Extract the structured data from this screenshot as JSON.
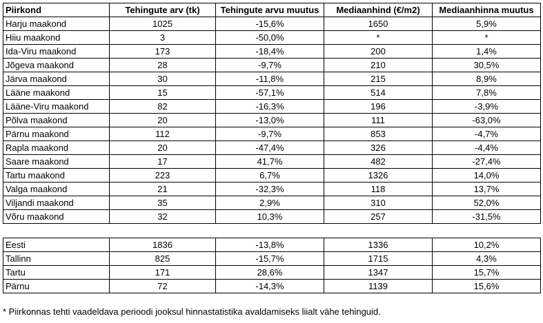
{
  "headers": [
    "Piirkond",
    "Tehingute arv (tk)",
    "Tehingute arvu muutus",
    "Mediaanhind (€/m2)",
    "Mediaanhinna muutus"
  ],
  "rows": [
    [
      "Harju maakond",
      "1025",
      "-15,6%",
      "1650",
      "5,9%"
    ],
    [
      "Hiiu maakond",
      "3",
      "-50,0%",
      "*",
      "*"
    ],
    [
      "Ida-Viru maakond",
      "173",
      "-18,4%",
      "200",
      "1,4%"
    ],
    [
      "Jõgeva maakond",
      "28",
      "-9,7%",
      "210",
      "30,5%"
    ],
    [
      "Järva maakond",
      "30",
      "-11,8%",
      "215",
      "8,9%"
    ],
    [
      "Lääne maakond",
      "15",
      "-57,1%",
      "514",
      "7,8%"
    ],
    [
      "Lääne-Viru maakond",
      "82",
      "-16,3%",
      "196",
      "-3,9%"
    ],
    [
      "Põlva maakond",
      "20",
      "-13,0%",
      "111",
      "-63,0%"
    ],
    [
      "Pärnu maakond",
      "112",
      "-9,7%",
      "853",
      "-4,7%"
    ],
    [
      "Rapla maakond",
      "20",
      "-47,4%",
      "326",
      "-4,4%"
    ],
    [
      "Saare maakond",
      "17",
      "41,7%",
      "482",
      "-27,4%"
    ],
    [
      "Tartu maakond",
      "223",
      "6,7%",
      "1326",
      "14,0%"
    ],
    [
      "Valga maakond",
      "21",
      "-32,3%",
      "118",
      "13,7%"
    ],
    [
      "Viljandi maakond",
      "35",
      "2,9%",
      "310",
      "52,0%"
    ],
    [
      "Võru maakond",
      "32",
      "10,3%",
      "257",
      "-31,5%"
    ]
  ],
  "summary_rows": [
    [
      "Eesti",
      "1836",
      "-13,8%",
      "1336",
      "10,2%"
    ],
    [
      "Tallinn",
      "825",
      "-15,7%",
      "1715",
      "4,3%"
    ],
    [
      "Tartu",
      "171",
      "28,6%",
      "1347",
      "15,7%"
    ],
    [
      "Pärnu",
      "72",
      "-14,3%",
      "1139",
      "15,6%"
    ]
  ],
  "footnote": "* Piirkonnas tehti vaadeldava perioodi jooksul hinnastatistika avaldamiseks liialt vähe tehinguid."
}
